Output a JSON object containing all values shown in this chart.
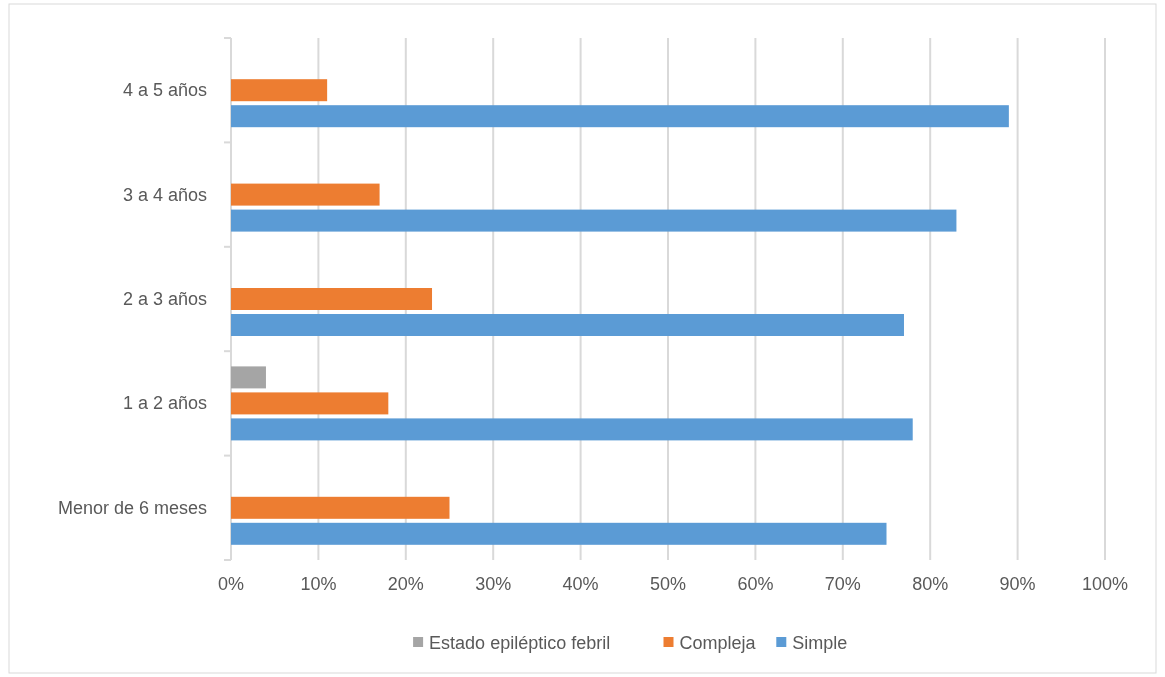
{
  "chart_data": {
    "type": "bar",
    "orientation": "horizontal",
    "categories": [
      "4 a 5 años",
      "3 a 4 años",
      "2 a 3 años",
      "1 a 2 años",
      "Menor de 6 meses"
    ],
    "series": [
      {
        "name": "Estado epiléptico febril",
        "color": "#a5a5a5",
        "values": [
          0,
          0,
          0,
          4,
          0
        ]
      },
      {
        "name": "Compleja",
        "color": "#ed7d31",
        "values": [
          11,
          17,
          23,
          18,
          25
        ]
      },
      {
        "name": "Simple",
        "color": "#5b9bd5",
        "values": [
          89,
          83,
          77,
          78,
          75
        ]
      }
    ],
    "xlim": [
      0,
      100
    ],
    "xticks": [
      {
        "value": 0,
        "label": "0%"
      },
      {
        "value": 10,
        "label": "10%"
      },
      {
        "value": 20,
        "label": "20%"
      },
      {
        "value": 30,
        "label": "30%"
      },
      {
        "value": 40,
        "label": "40%"
      },
      {
        "value": 50,
        "label": "50%"
      },
      {
        "value": 60,
        "label": "60%"
      },
      {
        "value": 70,
        "label": "70%"
      },
      {
        "value": 80,
        "label": "80%"
      },
      {
        "value": 90,
        "label": "90%"
      },
      {
        "value": 100,
        "label": "100%"
      }
    ],
    "grid": "x",
    "legend": "bottom"
  }
}
